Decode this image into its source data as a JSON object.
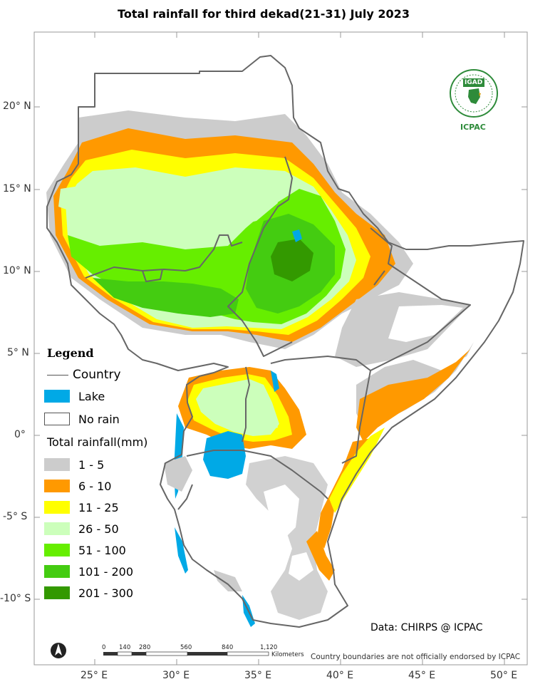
{
  "title": "Total rainfall  for  third dekad(21-31)  July  2023",
  "legend": {
    "heading": "Legend",
    "country_label": "Country",
    "lake_label": "Lake",
    "no_rain_label": "No rain",
    "rainfall_heading": "Total rainfall(mm)",
    "classes": [
      {
        "label": "1 - 5",
        "color": "#cccccc"
      },
      {
        "label": "6 - 10",
        "color": "#ff9900"
      },
      {
        "label": "11 - 25",
        "color": "#ffff00"
      },
      {
        "label": "26 - 50",
        "color": "#ccffbb"
      },
      {
        "label": "51 - 100",
        "color": "#66ee00"
      },
      {
        "label": "101 - 200",
        "color": "#44cc11"
      },
      {
        "label": "201 - 300",
        "color": "#339900"
      }
    ],
    "lake_color": "#00a9e6"
  },
  "axes": {
    "lat_labels": [
      "20° N",
      "15° N",
      "10° N",
      "5° N",
      "0°",
      "-5° S",
      "-10° S"
    ],
    "lon_labels": [
      "25° E",
      "30° E",
      "35° E",
      "40° E",
      "45° E",
      "50° E"
    ]
  },
  "scale_bar": {
    "ticks": [
      "0",
      "140",
      "280",
      "560",
      "840",
      "1,120"
    ],
    "unit": "Kilometers"
  },
  "logo": {
    "org_top": "IGAD",
    "org_bottom": "ICPAC"
  },
  "data_credit": "Data: CHIRPS @ ICPAC",
  "disclaimer": "Country boundaries are not officially endorsed by ICPAC"
}
